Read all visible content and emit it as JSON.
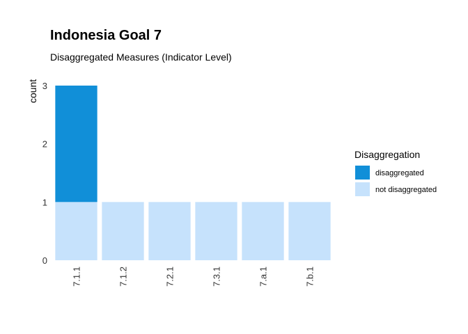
{
  "chart_data": {
    "type": "bar",
    "stacked": true,
    "title": "Indonesia Goal  7",
    "subtitle": "Disaggregated Measures (Indicator Level)",
    "xlabel": "",
    "ylabel": "count",
    "ylim": [
      0,
      3
    ],
    "yticks": [
      "0",
      "1",
      "2",
      "3"
    ],
    "categories": [
      "7.1.1",
      "7.1.2",
      "7.2.1",
      "7.3.1",
      "7.a.1",
      "7.b.1"
    ],
    "series": [
      {
        "name": "not disaggregated",
        "color": "#c6e2fc",
        "values": [
          1,
          1,
          1,
          1,
          1,
          1
        ]
      },
      {
        "name": "disaggregated",
        "color": "#118fd8",
        "values": [
          2,
          0,
          0,
          0,
          0,
          0
        ]
      }
    ],
    "legend": {
      "title": "Disaggregation",
      "position": "right",
      "items": [
        {
          "label": "disaggregated",
          "color": "#118fd8"
        },
        {
          "label": "not disaggregated",
          "color": "#c6e2fc"
        }
      ]
    },
    "grid": false
  }
}
